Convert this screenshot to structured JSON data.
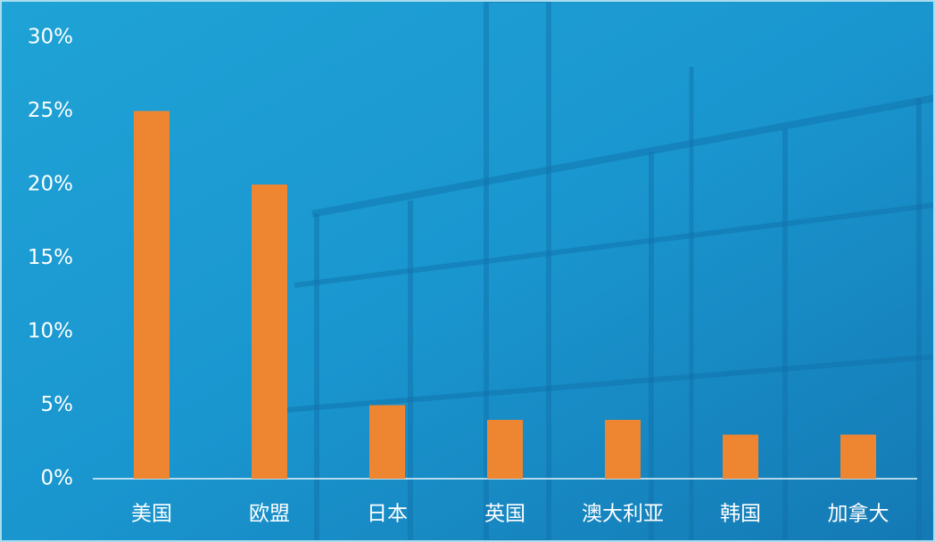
{
  "chart_data": {
    "type": "bar",
    "categories": [
      "美国",
      "欧盟",
      "日本",
      "英国",
      "澳大利亚",
      "韩国",
      "加拿大"
    ],
    "values": [
      25,
      20,
      5,
      4,
      4,
      3,
      3
    ],
    "color": "#ee8531",
    "ylim": [
      0,
      30
    ],
    "yticks": [
      {
        "value": 0,
        "label": "0%"
      },
      {
        "value": 5,
        "label": "5%"
      },
      {
        "value": 10,
        "label": "10%"
      },
      {
        "value": 15,
        "label": "15%"
      },
      {
        "value": 20,
        "label": "20%"
      },
      {
        "value": 25,
        "label": "25%"
      },
      {
        "value": 30,
        "label": "30%"
      }
    ],
    "grid": false
  }
}
